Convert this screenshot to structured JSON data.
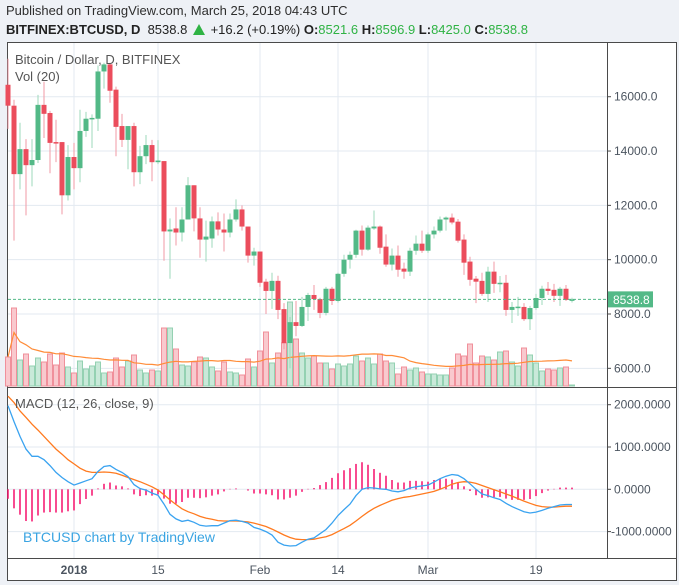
{
  "header": {
    "published": "Published on TradingView.com, March 25, 2018 04:43 UTC",
    "symbol": "BITFINEX:BTCUSD, D",
    "last": "8538.8",
    "change": "+16.2 (+0.19%)",
    "o_label": "O:",
    "o": "8521.6",
    "h_label": "H:",
    "h": "8596.9",
    "l_label": "L:",
    "l": "8425.0",
    "c_label": "C:",
    "c": "8538.8",
    "direction_icon": "triangle-up-icon"
  },
  "legend": {
    "main": "Bitcoin / Dollar, D, BITFINEX",
    "volume": "Vol (20)",
    "macd": "MACD (12, 26, close, 9)"
  },
  "watermark": "BTCUSD chart by TradingView",
  "colors": {
    "up": "#53b987",
    "down": "#eb4d5c",
    "up_wick": "#9ed8bb",
    "down_wick": "#f19aa4",
    "vol_up": "#c9e9d9",
    "vol_up_stroke": "#94d1b2",
    "vol_down": "#f9c9ce",
    "vol_down_stroke": "#f0909b",
    "vol_ma": "#ff8c38",
    "macd": "#3aa3f0",
    "signal": "#ff7a1f",
    "histogram": "#f50f6a",
    "grid": "#e3eaf1",
    "price_label": "#53b987"
  },
  "chart_data": [
    {
      "type": "candlestick",
      "title": "Bitcoin / Dollar, D, BITFINEX",
      "price_axis_ticks": [
        "16000.0",
        "14000.0",
        "12000.0",
        "10000.0",
        "8000.0",
        "6000.0"
      ],
      "price_ticks": [
        16000,
        14000,
        12000,
        10000,
        8000,
        6000
      ],
      "time_axis_ticks": [
        {
          "label": "2018",
          "date": "2018-01-01",
          "bold": true
        },
        {
          "label": "15",
          "date": "2018-01-15"
        },
        {
          "label": "Feb",
          "date": "2018-02-01"
        },
        {
          "label": "14",
          "date": "2018-02-14"
        },
        {
          "label": "Mar",
          "date": "2018-03-01"
        },
        {
          "label": "19",
          "date": "2018-03-19"
        }
      ],
      "current_price": 8538.8,
      "current_price_label": "8538.8",
      "volume_ma_period": 20,
      "columns": [
        "date",
        "open",
        "high",
        "low",
        "close",
        "volume_k"
      ],
      "candles": [
        [
          "2017-12-21",
          16440,
          17400,
          14815,
          15670,
          29
        ],
        [
          "2017-12-22",
          15670,
          15890,
          10700,
          13150,
          78
        ],
        [
          "2017-12-23",
          13150,
          15040,
          12590,
          14070,
          26
        ],
        [
          "2017-12-24",
          14070,
          14440,
          11630,
          13480,
          32
        ],
        [
          "2017-12-25",
          13480,
          14440,
          12700,
          13670,
          20
        ],
        [
          "2017-12-26",
          13670,
          16070,
          13560,
          15700,
          28
        ],
        [
          "2017-12-27",
          15700,
          16550,
          14480,
          15370,
          24
        ],
        [
          "2017-12-28",
          15400,
          15480,
          13180,
          14300,
          32
        ],
        [
          "2017-12-29",
          14330,
          15150,
          13590,
          14300,
          21
        ],
        [
          "2017-12-30",
          14330,
          14330,
          11670,
          12370,
          33
        ],
        [
          "2017-12-31",
          12370,
          14220,
          12180,
          13780,
          19
        ],
        [
          "2018-01-01",
          13780,
          14300,
          12590,
          13370,
          13
        ],
        [
          "2018-01-02",
          13370,
          15520,
          12850,
          14740,
          25
        ],
        [
          "2018-01-03",
          14740,
          15440,
          14520,
          15190,
          17
        ],
        [
          "2018-01-04",
          15190,
          15350,
          14110,
          15220,
          20
        ],
        [
          "2018-01-05",
          15190,
          17150,
          14740,
          16930,
          24
        ],
        [
          "2018-01-06",
          16930,
          17250,
          16300,
          17190,
          13
        ],
        [
          "2018-01-07",
          17190,
          17250,
          15780,
          16220,
          14
        ],
        [
          "2018-01-08",
          16260,
          16370,
          13810,
          14890,
          28
        ],
        [
          "2018-01-09",
          14920,
          15370,
          14150,
          14410,
          19
        ],
        [
          "2018-01-10",
          14410,
          14920,
          13330,
          14920,
          25
        ],
        [
          "2018-01-11",
          14920,
          15040,
          12700,
          13220,
          31
        ],
        [
          "2018-01-12",
          13220,
          14190,
          12780,
          13810,
          16
        ],
        [
          "2018-01-13",
          13810,
          14590,
          13520,
          14220,
          13
        ],
        [
          "2018-01-14",
          14220,
          14410,
          12890,
          13590,
          16
        ],
        [
          "2018-01-15",
          13590,
          14400,
          13520,
          13650,
          15
        ],
        [
          "2018-01-16",
          13630,
          13630,
          9960,
          11040,
          58
        ],
        [
          "2018-01-17",
          11040,
          11520,
          9300,
          11110,
          58
        ],
        [
          "2018-01-18",
          11150,
          11930,
          10520,
          11000,
          37
        ],
        [
          "2018-01-19",
          11000,
          11930,
          10670,
          11480,
          21
        ],
        [
          "2018-01-20",
          11480,
          13040,
          11480,
          12740,
          20
        ],
        [
          "2018-01-21",
          12740,
          12740,
          11040,
          11520,
          24
        ],
        [
          "2018-01-22",
          11520,
          11930,
          10070,
          10740,
          29
        ],
        [
          "2018-01-23",
          10740,
          11440,
          9930,
          10850,
          28
        ],
        [
          "2018-01-24",
          10780,
          11590,
          10440,
          11410,
          19
        ],
        [
          "2018-01-25",
          11410,
          11740,
          10890,
          11110,
          15
        ],
        [
          "2018-01-26",
          11110,
          11700,
          10300,
          11000,
          24
        ],
        [
          "2018-01-27",
          11000,
          11700,
          10820,
          11480,
          14
        ],
        [
          "2018-01-28",
          11480,
          12220,
          11400,
          11850,
          13
        ],
        [
          "2018-01-29",
          11850,
          12000,
          11070,
          11220,
          11
        ],
        [
          "2018-01-30",
          11220,
          11220,
          9890,
          10150,
          27
        ],
        [
          "2018-01-31",
          10150,
          10440,
          9780,
          10300,
          19
        ],
        [
          "2018-02-01",
          10300,
          10300,
          9000,
          9150,
          35
        ],
        [
          "2018-02-02",
          9190,
          9300,
          8000,
          8850,
          54
        ],
        [
          "2018-02-03",
          8850,
          9520,
          8190,
          9220,
          23
        ],
        [
          "2018-02-04",
          9220,
          9410,
          7810,
          8150,
          33
        ],
        [
          "2018-02-05",
          8180,
          8400,
          6700,
          6930,
          43
        ],
        [
          "2018-02-06",
          6930,
          7890,
          6000,
          7700,
          84
        ],
        [
          "2018-02-07",
          7700,
          8480,
          7180,
          7560,
          47
        ],
        [
          "2018-02-08",
          7560,
          8630,
          7520,
          8260,
          33
        ],
        [
          "2018-02-09",
          8260,
          8780,
          7740,
          8700,
          28
        ],
        [
          "2018-02-10",
          8700,
          9070,
          8150,
          8550,
          30
        ],
        [
          "2018-02-11",
          8550,
          8600,
          7850,
          8040,
          23
        ],
        [
          "2018-02-12",
          8040,
          9000,
          7950,
          8930,
          23
        ],
        [
          "2018-02-13",
          8930,
          9000,
          8330,
          8480,
          17
        ],
        [
          "2018-02-14",
          8480,
          9520,
          8420,
          9480,
          22
        ],
        [
          "2018-02-15",
          9480,
          10180,
          9370,
          10000,
          20
        ],
        [
          "2018-02-16",
          10000,
          10300,
          9670,
          10180,
          22
        ],
        [
          "2018-02-17",
          10180,
          11100,
          10070,
          11070,
          30
        ],
        [
          "2018-02-18",
          11070,
          11260,
          10150,
          10370,
          25
        ],
        [
          "2018-02-19",
          10370,
          11260,
          10330,
          11180,
          28
        ],
        [
          "2018-02-20",
          11150,
          11810,
          11100,
          11220,
          22
        ],
        [
          "2018-02-21",
          11220,
          11260,
          10220,
          10440,
          32
        ],
        [
          "2018-02-22",
          10480,
          10930,
          9740,
          9820,
          25
        ],
        [
          "2018-02-23",
          9820,
          10410,
          9600,
          10150,
          23
        ],
        [
          "2018-02-24",
          10150,
          10520,
          9370,
          9630,
          12
        ],
        [
          "2018-02-25",
          9670,
          9890,
          9300,
          9560,
          19
        ],
        [
          "2018-02-26",
          9560,
          10440,
          9400,
          10330,
          16
        ],
        [
          "2018-02-27",
          10330,
          10890,
          10180,
          10590,
          18
        ],
        [
          "2018-02-28",
          10590,
          11070,
          10250,
          10330,
          14
        ],
        [
          "2018-03-01",
          10330,
          11000,
          10250,
          10930,
          12
        ],
        [
          "2018-03-02",
          10930,
          11220,
          10780,
          11070,
          12
        ],
        [
          "2018-03-03",
          11070,
          11590,
          11000,
          11480,
          11
        ],
        [
          "2018-03-04",
          11480,
          11590,
          11070,
          11550,
          11
        ],
        [
          "2018-03-05",
          11550,
          11700,
          11300,
          11370,
          18
        ],
        [
          "2018-03-06",
          11400,
          11500,
          10630,
          10700,
          32
        ],
        [
          "2018-03-07",
          10740,
          10930,
          9440,
          9890,
          30
        ],
        [
          "2018-03-08",
          9930,
          10110,
          9040,
          9260,
          42
        ],
        [
          "2018-03-09",
          9300,
          9400,
          8400,
          9190,
          23
        ],
        [
          "2018-03-10",
          9220,
          9520,
          8670,
          8740,
          30
        ],
        [
          "2018-03-11",
          8740,
          9740,
          8440,
          9560,
          29
        ],
        [
          "2018-03-12",
          9560,
          9930,
          8780,
          9110,
          26
        ],
        [
          "2018-03-13",
          9110,
          9400,
          8800,
          9150,
          34
        ],
        [
          "2018-03-14",
          9150,
          9440,
          7930,
          8150,
          35
        ],
        [
          "2018-03-15",
          8150,
          8440,
          7670,
          8260,
          24
        ],
        [
          "2018-03-16",
          8260,
          8630,
          7930,
          8270,
          20
        ],
        [
          "2018-03-17",
          8260,
          8400,
          7740,
          7810,
          38
        ],
        [
          "2018-03-18",
          7810,
          8300,
          7410,
          8220,
          31
        ],
        [
          "2018-03-19",
          8220,
          8740,
          8150,
          8590,
          23
        ],
        [
          "2018-03-20",
          8590,
          9040,
          8330,
          8930,
          15
        ],
        [
          "2018-03-21",
          8930,
          9180,
          8700,
          8850,
          17
        ],
        [
          "2018-03-22",
          8890,
          9110,
          8440,
          8670,
          16
        ],
        [
          "2018-03-23",
          8670,
          9000,
          8300,
          8930,
          18
        ],
        [
          "2018-03-24",
          8930,
          9070,
          8480,
          8520,
          19
        ],
        [
          "2018-03-25",
          8521.6,
          8596.9,
          8425.0,
          8538.8,
          1
        ]
      ]
    },
    {
      "type": "line",
      "title": "MACD (12, 26, close, 9)",
      "axis_ticks": [
        "2000.0000",
        "1000.0000",
        "0.0000",
        "-1000.0000"
      ],
      "tick_values": [
        2000,
        1000,
        0,
        -1000
      ],
      "histogram": "macd minus signal",
      "series": [
        {
          "key": "macd",
          "values": [
            1976,
            1600,
            1250,
            950,
            780,
            780,
            700,
            560,
            400,
            280,
            180,
            100,
            150,
            200,
            250,
            420,
            540,
            560,
            470,
            400,
            300,
            110,
            20,
            -20,
            -90,
            -140,
            -350,
            -590,
            -700,
            -760,
            -730,
            -780,
            -850,
            -870,
            -860,
            -860,
            -800,
            -740,
            -730,
            -760,
            -800,
            -900,
            -940,
            -1000,
            -1080,
            -1250,
            -1320,
            -1340,
            -1330,
            -1250,
            -1180,
            -1150,
            -1050,
            -950,
            -800,
            -620,
            -480,
            -350,
            -150,
            0,
            40,
            30,
            10,
            0,
            -40,
            -60,
            -30,
            30,
            60,
            80,
            100,
            170,
            250,
            310,
            350,
            330,
            250,
            130,
            0,
            -110,
            -150,
            -200,
            -240,
            -330,
            -410,
            -470,
            -530,
            -560,
            -540,
            -500,
            -450,
            -410,
            -370,
            -360,
            -360
          ]
        },
        {
          "key": "signal",
          "values": [
            2200,
            2050,
            1850,
            1700,
            1540,
            1400,
            1250,
            1100,
            950,
            830,
            700,
            600,
            500,
            430,
            400,
            400,
            410,
            400,
            380,
            330,
            280,
            230,
            180,
            120,
            60,
            -20,
            -130,
            -250,
            -360,
            -460,
            -530,
            -580,
            -640,
            -680,
            -710,
            -740,
            -750,
            -750,
            -750,
            -760,
            -770,
            -800,
            -840,
            -880,
            -940,
            -1010,
            -1080,
            -1140,
            -1180,
            -1190,
            -1190,
            -1180,
            -1150,
            -1120,
            -1070,
            -1000,
            -930,
            -850,
            -750,
            -640,
            -540,
            -450,
            -380,
            -320,
            -260,
            -220,
            -190,
            -170,
            -140,
            -110,
            -80,
            -50,
            0,
            60,
            120,
            160,
            180,
            170,
            140,
            90,
            40,
            -10,
            -60,
            -110,
            -160,
            -220,
            -280,
            -330,
            -380,
            -410,
            -420,
            -420,
            -410,
            -400,
            -400
          ]
        }
      ]
    }
  ]
}
